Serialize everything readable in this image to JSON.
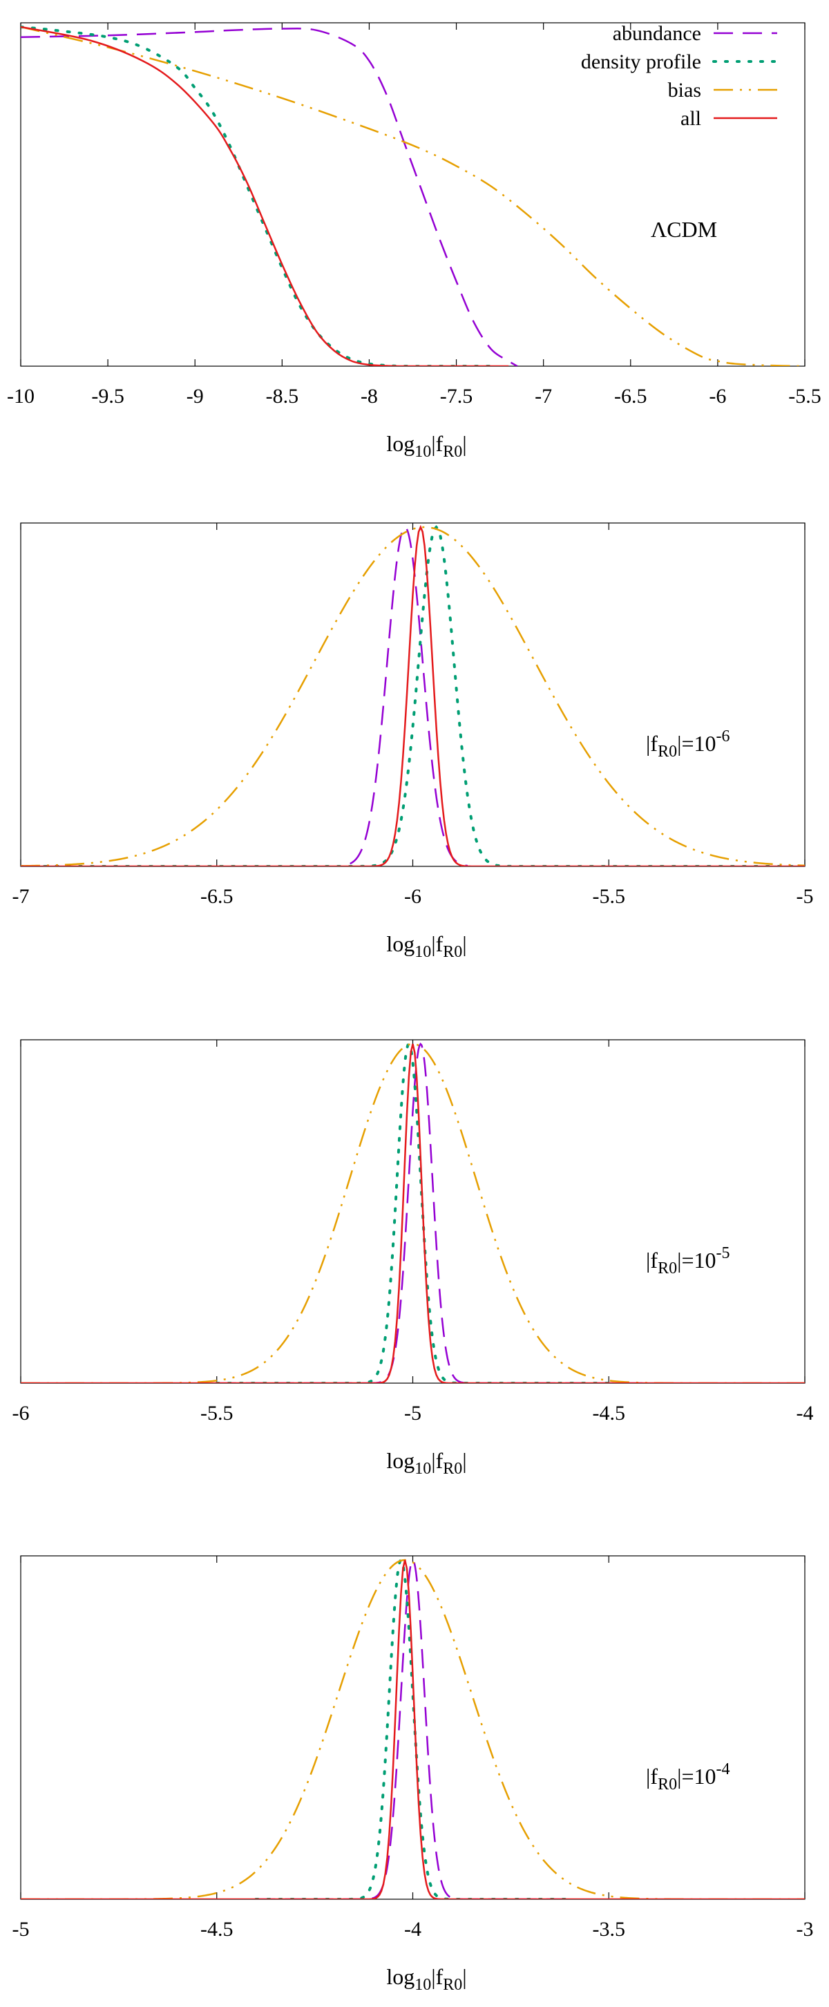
{
  "panels": [
    {
      "type": "line",
      "xlabel_base": "log",
      "xlabel_sub": "10",
      "xlabel_rest": "|f",
      "xlabel_sub2": "R0",
      "xlabel_end": "|",
      "xlim": [
        -10,
        -5.5
      ],
      "xticks": [
        "-10",
        "-9.5",
        "-9",
        "-8.5",
        "-8",
        "-7.5",
        "-7",
        "-6.5",
        "-6",
        "-5.5"
      ],
      "label": {
        "kind": "lcdm",
        "text": "ΛCDM"
      },
      "legend": {
        "placement": "top-right"
      },
      "series": [
        {
          "name": "abundance",
          "style": "dash",
          "color": "#9400d3",
          "x": [
            -10,
            -9.5,
            -9.0,
            -8.8,
            -8.5,
            -8.3,
            -8.1,
            -8.0,
            -7.9,
            -7.8,
            -7.7,
            -7.6,
            -7.5,
            -7.4,
            -7.3,
            -7.2,
            -7.15
          ],
          "y": [
            0.97,
            0.975,
            0.985,
            0.99,
            0.995,
            0.99,
            0.95,
            0.9,
            0.8,
            0.66,
            0.52,
            0.38,
            0.25,
            0.13,
            0.05,
            0.015,
            0.0
          ]
        },
        {
          "name": "density profile",
          "style": "dot",
          "color": "#009e73",
          "x": [
            -10,
            -9.8,
            -9.5,
            -9.3,
            -9.1,
            -9.0,
            -8.9,
            -8.8,
            -8.7,
            -8.6,
            -8.5,
            -8.4,
            -8.3,
            -8.2,
            -8.1,
            -8.0,
            -7.9,
            -7.8,
            -7.5,
            -7.3
          ],
          "y": [
            1.0,
            0.99,
            0.97,
            0.94,
            0.88,
            0.82,
            0.75,
            0.65,
            0.53,
            0.41,
            0.29,
            0.18,
            0.1,
            0.05,
            0.02,
            0.007,
            0.002,
            0.0,
            0.0,
            0.0
          ]
        },
        {
          "name": "bias",
          "style": "dashdotdot",
          "color": "#e69f00",
          "x": [
            -10,
            -9.5,
            -9.0,
            -8.5,
            -8.0,
            -7.7,
            -7.5,
            -7.3,
            -7.1,
            -6.9,
            -6.7,
            -6.5,
            -6.3,
            -6.1,
            -6.0,
            -5.9,
            -5.7,
            -5.5
          ],
          "y": [
            1.0,
            0.94,
            0.87,
            0.79,
            0.7,
            0.64,
            0.59,
            0.53,
            0.45,
            0.36,
            0.26,
            0.17,
            0.09,
            0.03,
            0.015,
            0.007,
            0.002,
            0.0
          ]
        },
        {
          "name": "all",
          "style": "solid",
          "color": "#e41a1c",
          "x": [
            -10,
            -9.6,
            -9.3,
            -9.1,
            -8.9,
            -8.8,
            -8.7,
            -8.6,
            -8.5,
            -8.4,
            -8.3,
            -8.2,
            -8.1,
            -8.0,
            -7.9,
            -7.8,
            -7.5,
            -7.2
          ],
          "y": [
            1.0,
            0.96,
            0.9,
            0.83,
            0.72,
            0.64,
            0.54,
            0.42,
            0.3,
            0.19,
            0.1,
            0.045,
            0.015,
            0.004,
            0.001,
            0.0,
            0.0,
            0.0
          ]
        }
      ]
    },
    {
      "type": "line",
      "xlabel_base": "log",
      "xlabel_sub": "10",
      "xlabel_rest": "|f",
      "xlabel_sub2": "R0",
      "xlabel_end": "|",
      "xlim": [
        -7,
        -5
      ],
      "xticks": [
        "-7",
        "-6.5",
        "-6",
        "-5.5",
        "-5"
      ],
      "label": {
        "kind": "fr0",
        "text": "|f",
        "sub": "R0",
        "eq": "|=10",
        "exp": "-6"
      },
      "series": [
        {
          "name": "abundance",
          "style": "dash",
          "color": "#9400d3",
          "gauss": {
            "mu": -6.02,
            "sigma": 0.045
          },
          "range": [
            -6.16,
            -5.86
          ]
        },
        {
          "name": "density profile",
          "style": "dot",
          "color": "#009e73",
          "gauss": {
            "mu": -5.94,
            "sigma": 0.045
          },
          "range": [
            -7,
            -5
          ]
        },
        {
          "name": "bias",
          "style": "dashdotdot",
          "color": "#e69f00",
          "gauss": {
            "mu": -5.97,
            "sigma": 0.28
          },
          "range": [
            -7,
            -5
          ]
        },
        {
          "name": "all",
          "style": "solid",
          "color": "#e41a1c",
          "gauss": {
            "mu": -5.98,
            "sigma": 0.03
          },
          "range": [
            -7,
            -5
          ]
        }
      ]
    },
    {
      "type": "line",
      "xlabel_base": "log",
      "xlabel_sub": "10",
      "xlabel_rest": "|f",
      "xlabel_sub2": "R0",
      "xlabel_end": "|",
      "xlim": [
        -6,
        -4
      ],
      "xticks": [
        "-6",
        "-5.5",
        "-5",
        "-4.5",
        "-4"
      ],
      "label": {
        "kind": "fr0",
        "text": "|f",
        "sub": "R0",
        "eq": "|=10",
        "exp": "-5"
      },
      "series": [
        {
          "name": "abundance",
          "style": "dash",
          "color": "#9400d3",
          "gauss": {
            "mu": -4.98,
            "sigma": 0.03
          },
          "range": [
            -5.5,
            -4.4
          ]
        },
        {
          "name": "density profile",
          "style": "dot",
          "color": "#009e73",
          "gauss": {
            "mu": -5.01,
            "sigma": 0.03
          },
          "range": [
            -5.5,
            -4.5
          ]
        },
        {
          "name": "bias",
          "style": "dashdotdot",
          "color": "#e69f00",
          "gauss": {
            "mu": -5.0,
            "sigma": 0.16
          },
          "range": [
            -6,
            -4
          ]
        },
        {
          "name": "all",
          "style": "solid",
          "color": "#e41a1c",
          "gauss": {
            "mu": -5.0,
            "sigma": 0.022
          },
          "range": [
            -6,
            -4
          ]
        }
      ]
    },
    {
      "type": "line",
      "xlabel_base": "log",
      "xlabel_sub": "10",
      "xlabel_rest": "|f",
      "xlabel_sub2": "R0",
      "xlabel_end": "|",
      "xlim": [
        -5,
        -3
      ],
      "xticks": [
        "-5",
        "-4.5",
        "-4",
        "-3.5",
        "-3"
      ],
      "label": {
        "kind": "fr0",
        "text": "|f",
        "sub": "R0",
        "eq": "|=10",
        "exp": "-4"
      },
      "series": [
        {
          "name": "abundance",
          "style": "dash",
          "color": "#9400d3",
          "gauss": {
            "mu": -4.0,
            "sigma": 0.03
          },
          "range": [
            -4.4,
            -3.6
          ]
        },
        {
          "name": "density profile",
          "style": "dot",
          "color": "#009e73",
          "gauss": {
            "mu": -4.03,
            "sigma": 0.03
          },
          "range": [
            -4.4,
            -3.6
          ]
        },
        {
          "name": "bias",
          "style": "dashdotdot",
          "color": "#e69f00",
          "gauss": {
            "mu": -4.02,
            "sigma": 0.17
          },
          "range": [
            -5,
            -3
          ]
        },
        {
          "name": "all",
          "style": "solid",
          "color": "#e41a1c",
          "gauss": {
            "mu": -4.02,
            "sigma": 0.022
          },
          "range": [
            -5,
            -3
          ]
        }
      ]
    }
  ]
}
